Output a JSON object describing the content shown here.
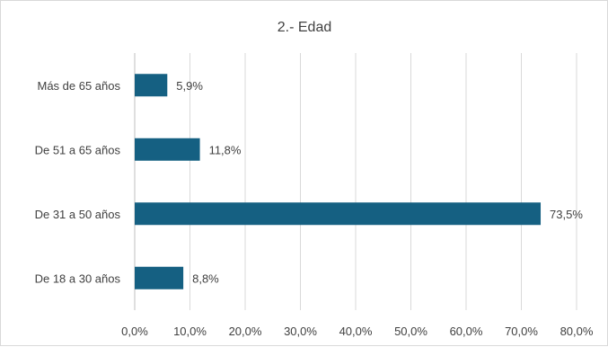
{
  "chart_data": {
    "type": "bar",
    "orientation": "horizontal",
    "title": "2.- Edad",
    "categories": [
      "De 18 a 30 años",
      "De 31 a 50 años",
      "De 51 a 65 años",
      "Más de 65 años"
    ],
    "values": [
      8.8,
      73.5,
      11.8,
      5.9
    ],
    "data_labels": [
      "8,8%",
      "73,5%",
      "11,8%",
      "5,9%"
    ],
    "xlim": [
      0,
      80
    ],
    "ticks": [
      0,
      10,
      20,
      30,
      40,
      50,
      60,
      70,
      80
    ],
    "tick_labels": [
      "0,0%",
      "10,0%",
      "20,0%",
      "30,0%",
      "40,0%",
      "50,0%",
      "60,0%",
      "70,0%",
      "80,0%"
    ],
    "xlabel": "",
    "ylabel": "",
    "grid": true,
    "legend": "none",
    "bar_color": "#156082"
  }
}
